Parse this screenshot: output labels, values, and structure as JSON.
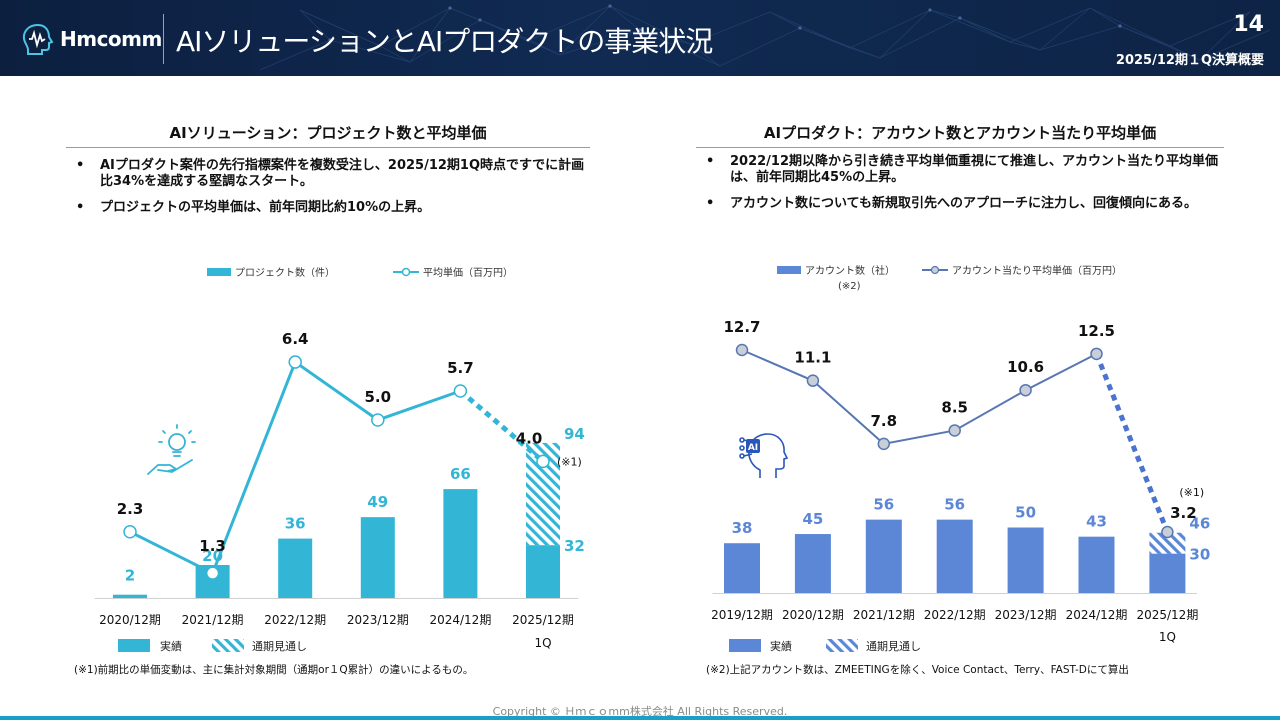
{
  "header": {
    "logo_text": "Hmcomm",
    "title": "AIソリューションとAIプロダクトの事業状況",
    "page_number": "14",
    "period": "2025/12期１Q決算概要"
  },
  "left": {
    "section_title": "AIソリューション：プロジェクト数と平均単価",
    "bullets": [
      "AIプロダクト案件の先行指標案件を複数受注し、2025/12期1Q時点ですでに計画比34%を達成する堅調なスタート。",
      "プロジェクトの平均単価は、前年同期比約10%の上昇。"
    ],
    "bullet_symbol": "•",
    "note": "(※1)前期比の単価変動は、主に集計対象期間（通期or１Q累計）の違いによるもの。",
    "legend_actual": "実績",
    "legend_forecast": "通期見通し",
    "line_annotation": "(※1)",
    "icon": "lightbulb-hand-icon"
  },
  "right": {
    "section_title": "AIプロダクト：アカウント数とアカウント当たり平均単価",
    "bullets": [
      "2022/12期以降から引き続き平均単価重視にて推進し、アカウント当たり平均単価は、前年同期比45%の上昇。",
      "アカウント数についても新規取引先へのアプローチに注力し、回復傾向にある。"
    ],
    "bullet_symbol": "•",
    "note": "(※2)上記アカウント数は、ZMEETINGを除く、Voice Contact、Terry、FAST-Dにて算出",
    "legend_actual": "実績",
    "legend_forecast": "通期見通し",
    "legend_bar_note": "(※2)",
    "line_annotation": "(※1)",
    "icon": "ai-head-icon",
    "icon_label": "AI"
  },
  "chart_data": [
    {
      "type": "bar",
      "categories": [
        "2020/12期",
        "2021/12期",
        "2022/12期",
        "2023/12期",
        "2024/12期",
        "2025/12期"
      ],
      "last_category_sub": "1Q",
      "series": [
        {
          "name": "プロジェクト数（件）",
          "kind": "bar",
          "values": [
            2,
            20,
            36,
            49,
            66,
            32
          ],
          "color": "#33b5d6"
        },
        {
          "name": "通期見通し",
          "kind": "bar-forecast",
          "values": [
            null,
            null,
            null,
            null,
            null,
            94
          ],
          "color": "#33b5d6"
        },
        {
          "name": "平均単価（百万円）",
          "kind": "line",
          "values": [
            2.3,
            1.3,
            6.4,
            5.0,
            5.7,
            4.0
          ],
          "dashed_last_segment": true,
          "color": "#33b5d6"
        }
      ],
      "bar_value_labels": [
        "2",
        "20",
        "36",
        "49",
        "66",
        "32"
      ],
      "forecast_value_label": "94",
      "line_value_labels": [
        "2.3",
        "1.3",
        "6.4",
        "5.0",
        "5.7",
        "4.0"
      ],
      "xlabel": "",
      "ylabel": "",
      "grid": false
    },
    {
      "type": "bar",
      "categories": [
        "2019/12期",
        "2020/12期",
        "2021/12期",
        "2022/12期",
        "2023/12期",
        "2024/12期",
        "2025/12期"
      ],
      "last_category_sub": "1Q",
      "series": [
        {
          "name": "アカウント数（社）",
          "kind": "bar",
          "values": [
            38,
            45,
            56,
            56,
            50,
            43,
            30
          ],
          "color": "#5b87d6"
        },
        {
          "name": "通期見通し",
          "kind": "bar-forecast",
          "values": [
            null,
            null,
            null,
            null,
            null,
            null,
            46
          ],
          "color": "#5b87d6"
        },
        {
          "name": "アカウント当たり平均単価（百万円）",
          "kind": "line",
          "values": [
            12.7,
            11.1,
            7.8,
            8.5,
            10.6,
            12.5,
            3.2
          ],
          "dashed_last_segment": true,
          "color": "#5877b2"
        }
      ],
      "bar_value_labels": [
        "38",
        "45",
        "56",
        "56",
        "50",
        "43",
        "30"
      ],
      "forecast_value_label": "46",
      "line_value_labels": [
        "12.7",
        "11.1",
        "7.8",
        "8.5",
        "10.6",
        "12.5",
        "3.2"
      ],
      "xlabel": "",
      "ylabel": "",
      "grid": false
    }
  ],
  "footer": "Copyright © Ｈｍｃｏmm株式会社 All Rights Reserved."
}
